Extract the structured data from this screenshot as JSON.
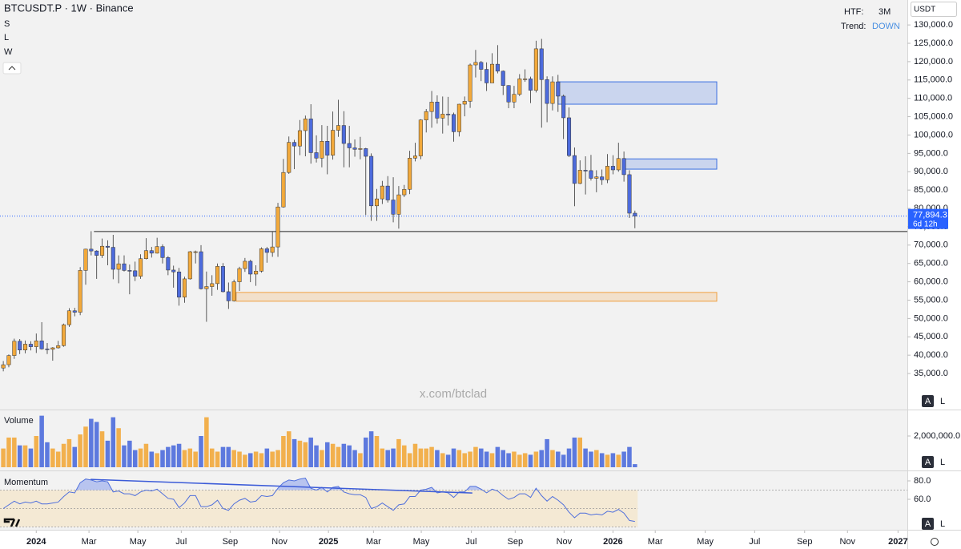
{
  "header": {
    "legend": [
      "S",
      "L",
      "W"
    ],
    "htf_label": "HTF:",
    "htf": "3M",
    "trend_label": "Trend:",
    "trend": "DOWN",
    "currency": "USDT",
    "watermark": "x.com/btclad",
    "buttons": [
      "A",
      "L"
    ]
  },
  "chart_data": [
    {
      "type": "candlestick",
      "title": "BTCUSDT.P · 1W · Binance",
      "up_color": "#f2a93b",
      "down_color": "#4d6bdc",
      "open": [
        36500,
        37400,
        39900,
        43800,
        41400,
        43000,
        42300,
        43900,
        41700,
        41600,
        42000,
        42600,
        48300,
        52100,
        51700,
        63100,
        68900,
        68400,
        67200,
        69700,
        69400,
        63400,
        64900,
        63100,
        63000,
        61500,
        66300,
        68500,
        67800,
        69600,
        66600,
        63200,
        62700,
        55800,
        60800,
        68200,
        68200,
        58100,
        58700,
        59500,
        64200,
        57300,
        54800,
        60000,
        63600,
        65600,
        62100,
        62900,
        69000,
        68000,
        69500,
        80400,
        89800,
        98000,
        97000,
        101200,
        104400,
        95200,
        93700,
        98300,
        94500,
        101300,
        102600,
        97700,
        96500,
        96100,
        96300,
        94200,
        80700,
        82600,
        86100,
        82300,
        78400,
        83700,
        85200,
        93700,
        94300,
        104100,
        106400,
        109000,
        104600,
        105700,
        105600,
        100900,
        108400,
        109200,
        119100,
        119800,
        117900,
        114200,
        119300,
        117400,
        113500,
        109000,
        111100,
        115300,
        115300,
        112200,
        123500,
        115100,
        108600,
        114500,
        110600,
        104700,
        94400,
        86800,
        90400,
        90300,
        88200,
        88600,
        87800,
        91500,
        90500,
        93600,
        89200,
        78700
      ],
      "high": [
        38400,
        40200,
        44500,
        44400,
        44000,
        43800,
        45900,
        49000,
        43300,
        42200,
        43900,
        48600,
        52800,
        52900,
        64000,
        69000,
        73800,
        68600,
        71800,
        71300,
        72800,
        67200,
        67200,
        64700,
        65500,
        67500,
        71900,
        69500,
        72000,
        70200,
        67000,
        64400,
        63800,
        61400,
        68400,
        68500,
        70000,
        62800,
        61800,
        65000,
        65100,
        59800,
        60600,
        64100,
        66500,
        66000,
        64500,
        69400,
        69500,
        73600,
        81500,
        93500,
        99600,
        98700,
        104100,
        105300,
        108400,
        99900,
        102700,
        102500,
        106400,
        109600,
        106500,
        102500,
        98800,
        99500,
        96500,
        95000,
        85300,
        87500,
        88800,
        88500,
        86100,
        86400,
        95700,
        97900,
        104300,
        107100,
        112000,
        110800,
        110500,
        110400,
        106100,
        108500,
        110500,
        119500,
        123200,
        120200,
        119800,
        122300,
        124500,
        117600,
        113600,
        113400,
        116600,
        117900,
        115900,
        125700,
        126200,
        116000,
        116000,
        116400,
        111000,
        107500,
        96600,
        93100,
        94200,
        94600,
        90400,
        90600,
        94800,
        94500,
        97900,
        95500,
        90400,
        79400
      ],
      "low": [
        35600,
        36700,
        39000,
        40300,
        40500,
        41300,
        40600,
        41500,
        40300,
        38500,
        41800,
        42300,
        47700,
        50600,
        50900,
        59200,
        67200,
        60800,
        66500,
        64500,
        60700,
        59600,
        62800,
        56600,
        60200,
        60800,
        66100,
        66600,
        67700,
        65000,
        61800,
        58400,
        53500,
        54300,
        60600,
        65000,
        57900,
        49100,
        56200,
        57800,
        57100,
        52600,
        54600,
        57500,
        62700,
        59900,
        58900,
        62500,
        65200,
        66800,
        66800,
        80200,
        89400,
        90700,
        94500,
        94200,
        92200,
        92500,
        91200,
        89300,
        93300,
        99500,
        91200,
        91200,
        94100,
        93400,
        78200,
        76600,
        76600,
        81200,
        81600,
        76200,
        74500,
        83100,
        83900,
        92800,
        93400,
        100700,
        102000,
        103100,
        100400,
        102600,
        98200,
        99600,
        105100,
        107400,
        115700,
        114700,
        112000,
        114300,
        116800,
        110900,
        107300,
        107300,
        110600,
        114500,
        108700,
        111600,
        102000,
        103500,
        106700,
        106300,
        98900,
        94000,
        80600,
        86600,
        83800,
        87600,
        84400,
        86400,
        86900,
        89300,
        90000,
        87300,
        77400,
        74600
      ],
      "close": [
        37400,
        39900,
        43800,
        41400,
        43000,
        42300,
        43900,
        41700,
        41600,
        42000,
        42600,
        48300,
        52100,
        51700,
        63100,
        68900,
        68400,
        67200,
        69700,
        69400,
        63400,
        64900,
        63100,
        63000,
        61500,
        66300,
        68500,
        67800,
        69600,
        66600,
        63200,
        62700,
        55800,
        60800,
        68200,
        68200,
        58100,
        58700,
        59500,
        64200,
        57300,
        54800,
        60000,
        63600,
        65600,
        62100,
        62900,
        69000,
        68000,
        69500,
        80400,
        89800,
        98000,
        97000,
        101200,
        104400,
        95200,
        93700,
        98300,
        94500,
        101300,
        102600,
        97700,
        96500,
        96100,
        96300,
        94200,
        80700,
        82600,
        86100,
        82300,
        78400,
        83700,
        85200,
        93700,
        94300,
        104100,
        106400,
        109000,
        104600,
        105700,
        105600,
        100900,
        108400,
        109200,
        119100,
        119800,
        117900,
        114200,
        119300,
        117400,
        113500,
        109000,
        111100,
        115300,
        115300,
        112200,
        123500,
        115100,
        108600,
        114500,
        110600,
        104700,
        94400,
        86800,
        90400,
        90300,
        88200,
        88600,
        87800,
        91500,
        90500,
        93600,
        89200,
        78700,
        77900
      ],
      "ylim": [
        25400,
        136800
      ],
      "yticks": [
        {
          "value": 35000,
          "label": "35,000.0"
        },
        {
          "value": 40000,
          "label": "40,000.0"
        },
        {
          "value": 45000,
          "label": "45,000.0"
        },
        {
          "value": 50000,
          "label": "50,000.0"
        },
        {
          "value": 55000,
          "label": "55,000.0"
        },
        {
          "value": 60000,
          "label": "60,000.0"
        },
        {
          "value": 65000,
          "label": "65,000.0"
        },
        {
          "value": 70000,
          "label": "70,000.0"
        },
        {
          "value": 75000,
          "label": "75,000.0"
        },
        {
          "value": 80000,
          "label": "80,000.0"
        },
        {
          "value": 85000,
          "label": "85,000.0"
        },
        {
          "value": 90000,
          "label": "90,000.0"
        },
        {
          "value": 95000,
          "label": "95,000.0"
        },
        {
          "value": 100000,
          "label": "100,000.0"
        },
        {
          "value": 105000,
          "label": "105,000.0"
        },
        {
          "value": 110000,
          "label": "110,000.0"
        },
        {
          "value": 115000,
          "label": "115,000.0"
        },
        {
          "value": 120000,
          "label": "120,000.0"
        },
        {
          "value": 125000,
          "label": "125,000.0"
        },
        {
          "value": 130000,
          "label": "130,000.0"
        }
      ],
      "xlim": [
        -0.6,
        164.6
      ],
      "xticks": [
        {
          "value": 6,
          "label": "2024"
        },
        {
          "value": 15.6,
          "label": "Mar"
        },
        {
          "value": 24.5,
          "label": "May"
        },
        {
          "value": 32.4,
          "label": "Jul"
        },
        {
          "value": 41.3,
          "label": "Sep"
        },
        {
          "value": 50.3,
          "label": "Nov"
        },
        {
          "value": 59.2,
          "label": "2025"
        },
        {
          "value": 67.4,
          "label": "Mar"
        },
        {
          "value": 76.1,
          "label": "May"
        },
        {
          "value": 85.2,
          "label": "Jul"
        },
        {
          "value": 93.2,
          "label": "Sep"
        },
        {
          "value": 102.1,
          "label": "Nov"
        },
        {
          "value": 111,
          "label": "2026"
        },
        {
          "value": 118.7,
          "label": "Mar"
        },
        {
          "value": 127.8,
          "label": "May"
        },
        {
          "value": 136.8,
          "label": "Jul"
        },
        {
          "value": 145.9,
          "label": "Sep"
        },
        {
          "value": 153.7,
          "label": "Nov"
        },
        {
          "value": 162.9,
          "label": "2027"
        }
      ],
      "grid": false,
      "zones": [
        {
          "low": 108400,
          "high": 114500,
          "from": 101,
          "to": 129.9,
          "color": "#3b6fe0"
        },
        {
          "low": 90700,
          "high": 93500,
          "from": 112.8,
          "to": 129.9,
          "color": "#3b6fe0"
        },
        {
          "low": 54700,
          "high": 57100,
          "from": 42.4,
          "to": 129.9,
          "color": "#f0a040"
        }
      ],
      "level": {
        "value": 73700,
        "from": 16.5
      },
      "last_price": {
        "value": 77894.3,
        "label": "77,894.3",
        "countdown": "6d 12h",
        "color": "#2962ff"
      }
    },
    {
      "type": "bar",
      "title": "Volume",
      "values": [
        1200000,
        1900000,
        1900000,
        1400000,
        1400000,
        1200000,
        2000000,
        3300000,
        1600000,
        1200000,
        1000000,
        1500000,
        1800000,
        1300000,
        2100000,
        2600000,
        3100000,
        2900000,
        2300000,
        1700000,
        3200000,
        2500000,
        1400000,
        1700000,
        1100000,
        1200000,
        1500000,
        1000000,
        900000,
        1100000,
        1300000,
        1400000,
        1500000,
        1100000,
        1200000,
        1000000,
        2000000,
        3200000,
        1200000,
        1000000,
        1300000,
        1300000,
        1100000,
        1000000,
        800000,
        900000,
        1000000,
        900000,
        1200000,
        1000000,
        1100000,
        2000000,
        2300000,
        1800000,
        1700000,
        1600000,
        1900000,
        1400000,
        1100000,
        1600000,
        1500000,
        1300000,
        1500000,
        1400000,
        1100000,
        900000,
        1900000,
        2300000,
        2000000,
        1200000,
        1100000,
        1200000,
        1800000,
        1400000,
        900000,
        1500000,
        1200000,
        1200000,
        1300000,
        1100000,
        900000,
        800000,
        1200000,
        1100000,
        900000,
        1000000,
        1300000,
        1200000,
        1000000,
        900000,
        1300000,
        1100000,
        900000,
        1000000,
        800000,
        900000,
        800000,
        1000000,
        1100000,
        1800000,
        1100000,
        1000000,
        800000,
        1200000,
        1900000,
        1900000,
        1200000,
        1000000,
        1100000,
        900000,
        800000,
        900000,
        800000,
        1000000,
        1300000,
        200000
      ],
      "ylim": [
        0,
        3590000
      ],
      "yticks": [
        {
          "value": 2000000,
          "label": "2,000,000.0"
        }
      ]
    },
    {
      "type": "line",
      "title": "Momentum",
      "color": "#4f6fdc",
      "values": [
        50,
        54,
        58,
        55,
        57,
        56,
        58,
        55,
        55,
        56,
        57,
        63,
        68,
        67,
        78,
        82,
        81,
        79,
        80,
        79,
        68,
        69,
        66,
        66,
        64,
        68,
        70,
        69,
        71,
        66,
        61,
        60,
        51,
        56,
        64,
        64,
        52,
        52,
        54,
        59,
        50,
        48,
        55,
        59,
        61,
        57,
        58,
        64,
        63,
        64,
        72,
        78,
        81,
        80,
        82,
        83,
        72,
        70,
        73,
        68,
        73,
        74,
        68,
        66,
        65,
        65,
        62,
        50,
        52,
        56,
        52,
        48,
        54,
        55,
        63,
        63,
        70,
        71,
        73,
        67,
        68,
        67,
        62,
        68,
        68,
        74,
        74,
        71,
        67,
        71,
        69,
        64,
        60,
        62,
        66,
        66,
        62,
        72,
        64,
        58,
        63,
        59,
        54,
        46,
        40,
        45,
        45,
        43,
        44,
        43,
        47,
        46,
        49,
        45,
        37,
        36
      ],
      "ylim": [
        27.8,
        88.7
      ],
      "yticks": [
        {
          "value": 80,
          "label": "80.0"
        },
        {
          "value": 60,
          "label": "60.0"
        }
      ],
      "levels": [
        70,
        50,
        30
      ],
      "trendline": {
        "from": [
          15.9,
          81.6
        ],
        "to": [
          85.4,
          66.8
        ]
      }
    }
  ]
}
